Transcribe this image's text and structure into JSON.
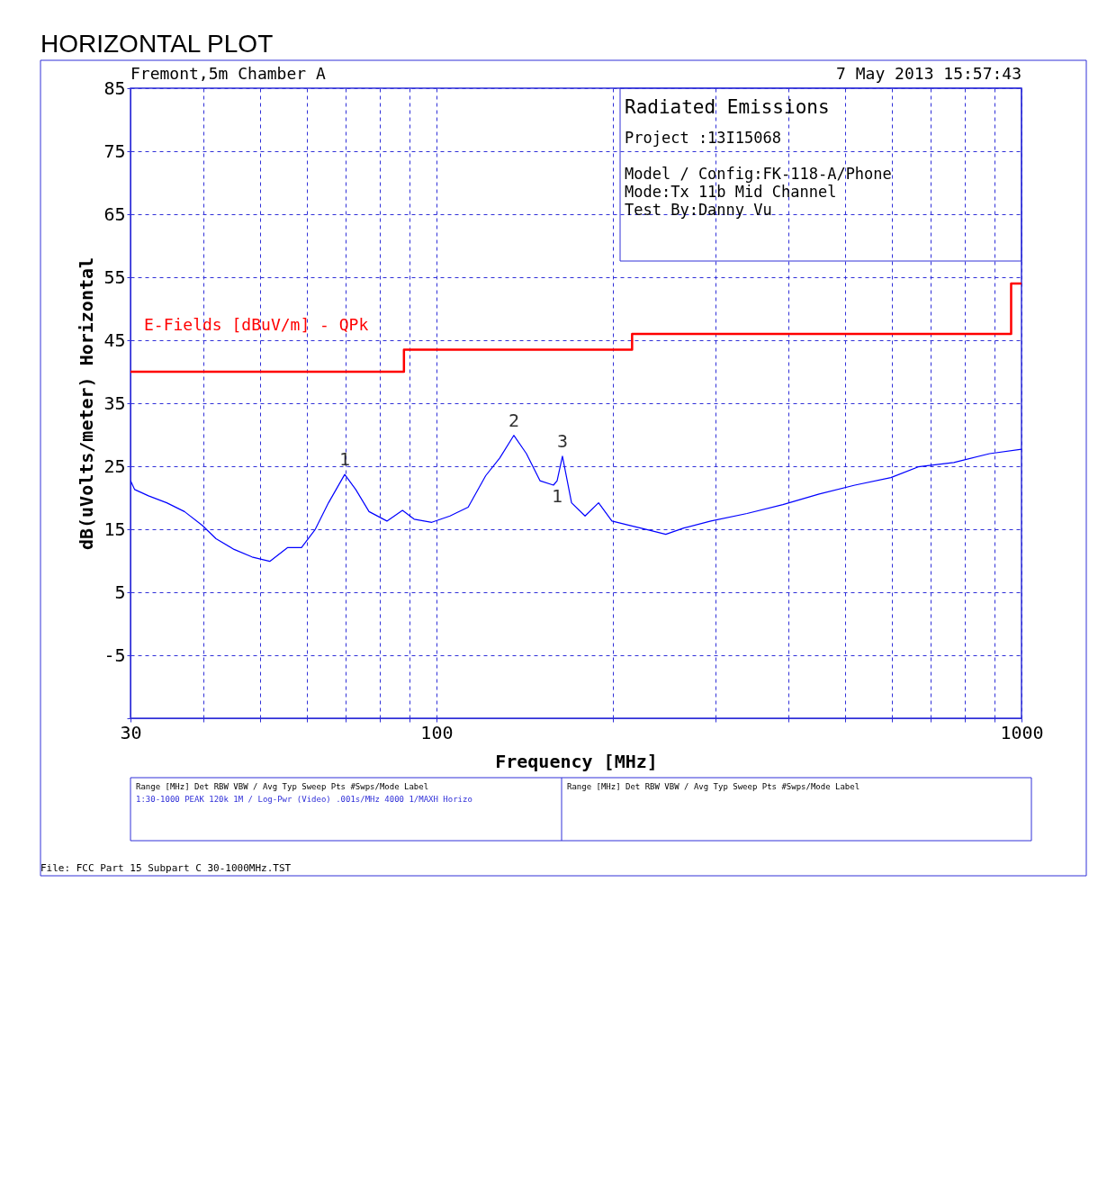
{
  "chart_data": {
    "type": "line",
    "title": "HORIZONTAL PLOT",
    "xlabel": "Frequency [MHz]",
    "ylabel": "dB(uVolts/meter) Horizontal",
    "log": "x",
    "grid": true,
    "xlim": [
      30,
      1000
    ],
    "ylim": [
      -15,
      85
    ],
    "xticks": [
      30,
      {
        "value": 40,
        "label": null
      },
      {
        "value": 50,
        "label": null
      },
      {
        "value": 60,
        "label": null
      },
      {
        "value": 70,
        "label": null
      },
      {
        "value": 80,
        "label": null
      },
      {
        "value": 90,
        "label": null
      },
      100,
      {
        "value": 200,
        "label": null
      },
      {
        "value": 300,
        "label": null
      },
      {
        "value": 400,
        "label": null
      },
      {
        "value": 500,
        "label": null
      },
      {
        "value": 600,
        "label": null
      },
      {
        "value": 700,
        "label": null
      },
      {
        "value": 800,
        "label": null
      },
      {
        "value": 900,
        "label": null
      },
      1000
    ],
    "yticks": [
      {
        "value": -15,
        "label": null
      },
      -5,
      5,
      15,
      25,
      35,
      45,
      55,
      65,
      75,
      85
    ],
    "series": [
      {
        "color": "#0000ff",
        "x": [
          30,
          30.5,
          32.2,
          34.6,
          37.1,
          39.8,
          42.0,
          45.1,
          48.4,
          51.9,
          55.7,
          58.8,
          62.0,
          65.4,
          69.7,
          72.8,
          76.7,
          82.3,
          87.5,
          91.6,
          98.2,
          105.5,
          113.3,
          121.4,
          128.3,
          135.6,
          142.5,
          150.3,
          158.5,
          160.8,
          164.2,
          170.2,
          179.5,
          189.3,
          199.5,
          214.3,
          229.8,
          246.6,
          264.8,
          294.5,
          339.5,
          391,
          451,
          519,
          598,
          666,
          766,
          882,
          1000
        ],
        "values": [
          22.7,
          21.3,
          20.3,
          19.2,
          17.8,
          15.6,
          13.5,
          11.8,
          10.6,
          9.9,
          12.1,
          12.1,
          14.9,
          19.2,
          23.7,
          21.3,
          17.8,
          16.3,
          18.0,
          16.6,
          16.1,
          17.1,
          18.5,
          23.5,
          26.3,
          29.9,
          27.0,
          22.7,
          22.0,
          22.7,
          26.6,
          19.2,
          17.1,
          19.2,
          16.3,
          15.6,
          14.9,
          14.2,
          15.2,
          16.3,
          17.5,
          18.9,
          20.6,
          22.0,
          23.2,
          24.9,
          25.6,
          27.0,
          27.7
        ]
      },
      {
        "type": "step",
        "name": "E-Fields [dBuV/m] - QPk",
        "color": "#ff0000",
        "x": [
          30,
          88,
          216,
          960,
          1000
        ],
        "values": [
          40,
          43.5,
          46,
          54,
          54
        ]
      }
    ],
    "annotations": [
      "Fremont,5m Chamber A",
      "7 May 2013    15:57:43",
      "Radiated Emissions",
      "Project :13I15068",
      "Model / Config:FK-118-A/Phone",
      "Mode:Tx 11b Mid Channel",
      "Test By:Danny Vu",
      "Range [MHz]       Det   RBW    VBW / Avg Typ         Sweep       Pts    #Swps/Mode    Label",
      "1:30-1000         PEAK  120k   1M / Log-Pwr (Video)  .001s/MHz   4000   1/MAXH        Horizo",
      "Range [MHz]       Det   RBW    VBW / Avg Typ         Sweep       Pts    #Swps/Mode    Label",
      "File: FCC Part 15 Subpart C 30-1000MHz.TST",
      {
        "text": "1",
        "x": 69.7,
        "y": 23.7
      },
      {
        "text": "2",
        "x": 135.6,
        "y": 29.9
      },
      {
        "text": "3",
        "x": 164.2,
        "y": 26.6
      },
      {
        "text": "1",
        "x": 160.8,
        "y": 22.7
      }
    ]
  }
}
